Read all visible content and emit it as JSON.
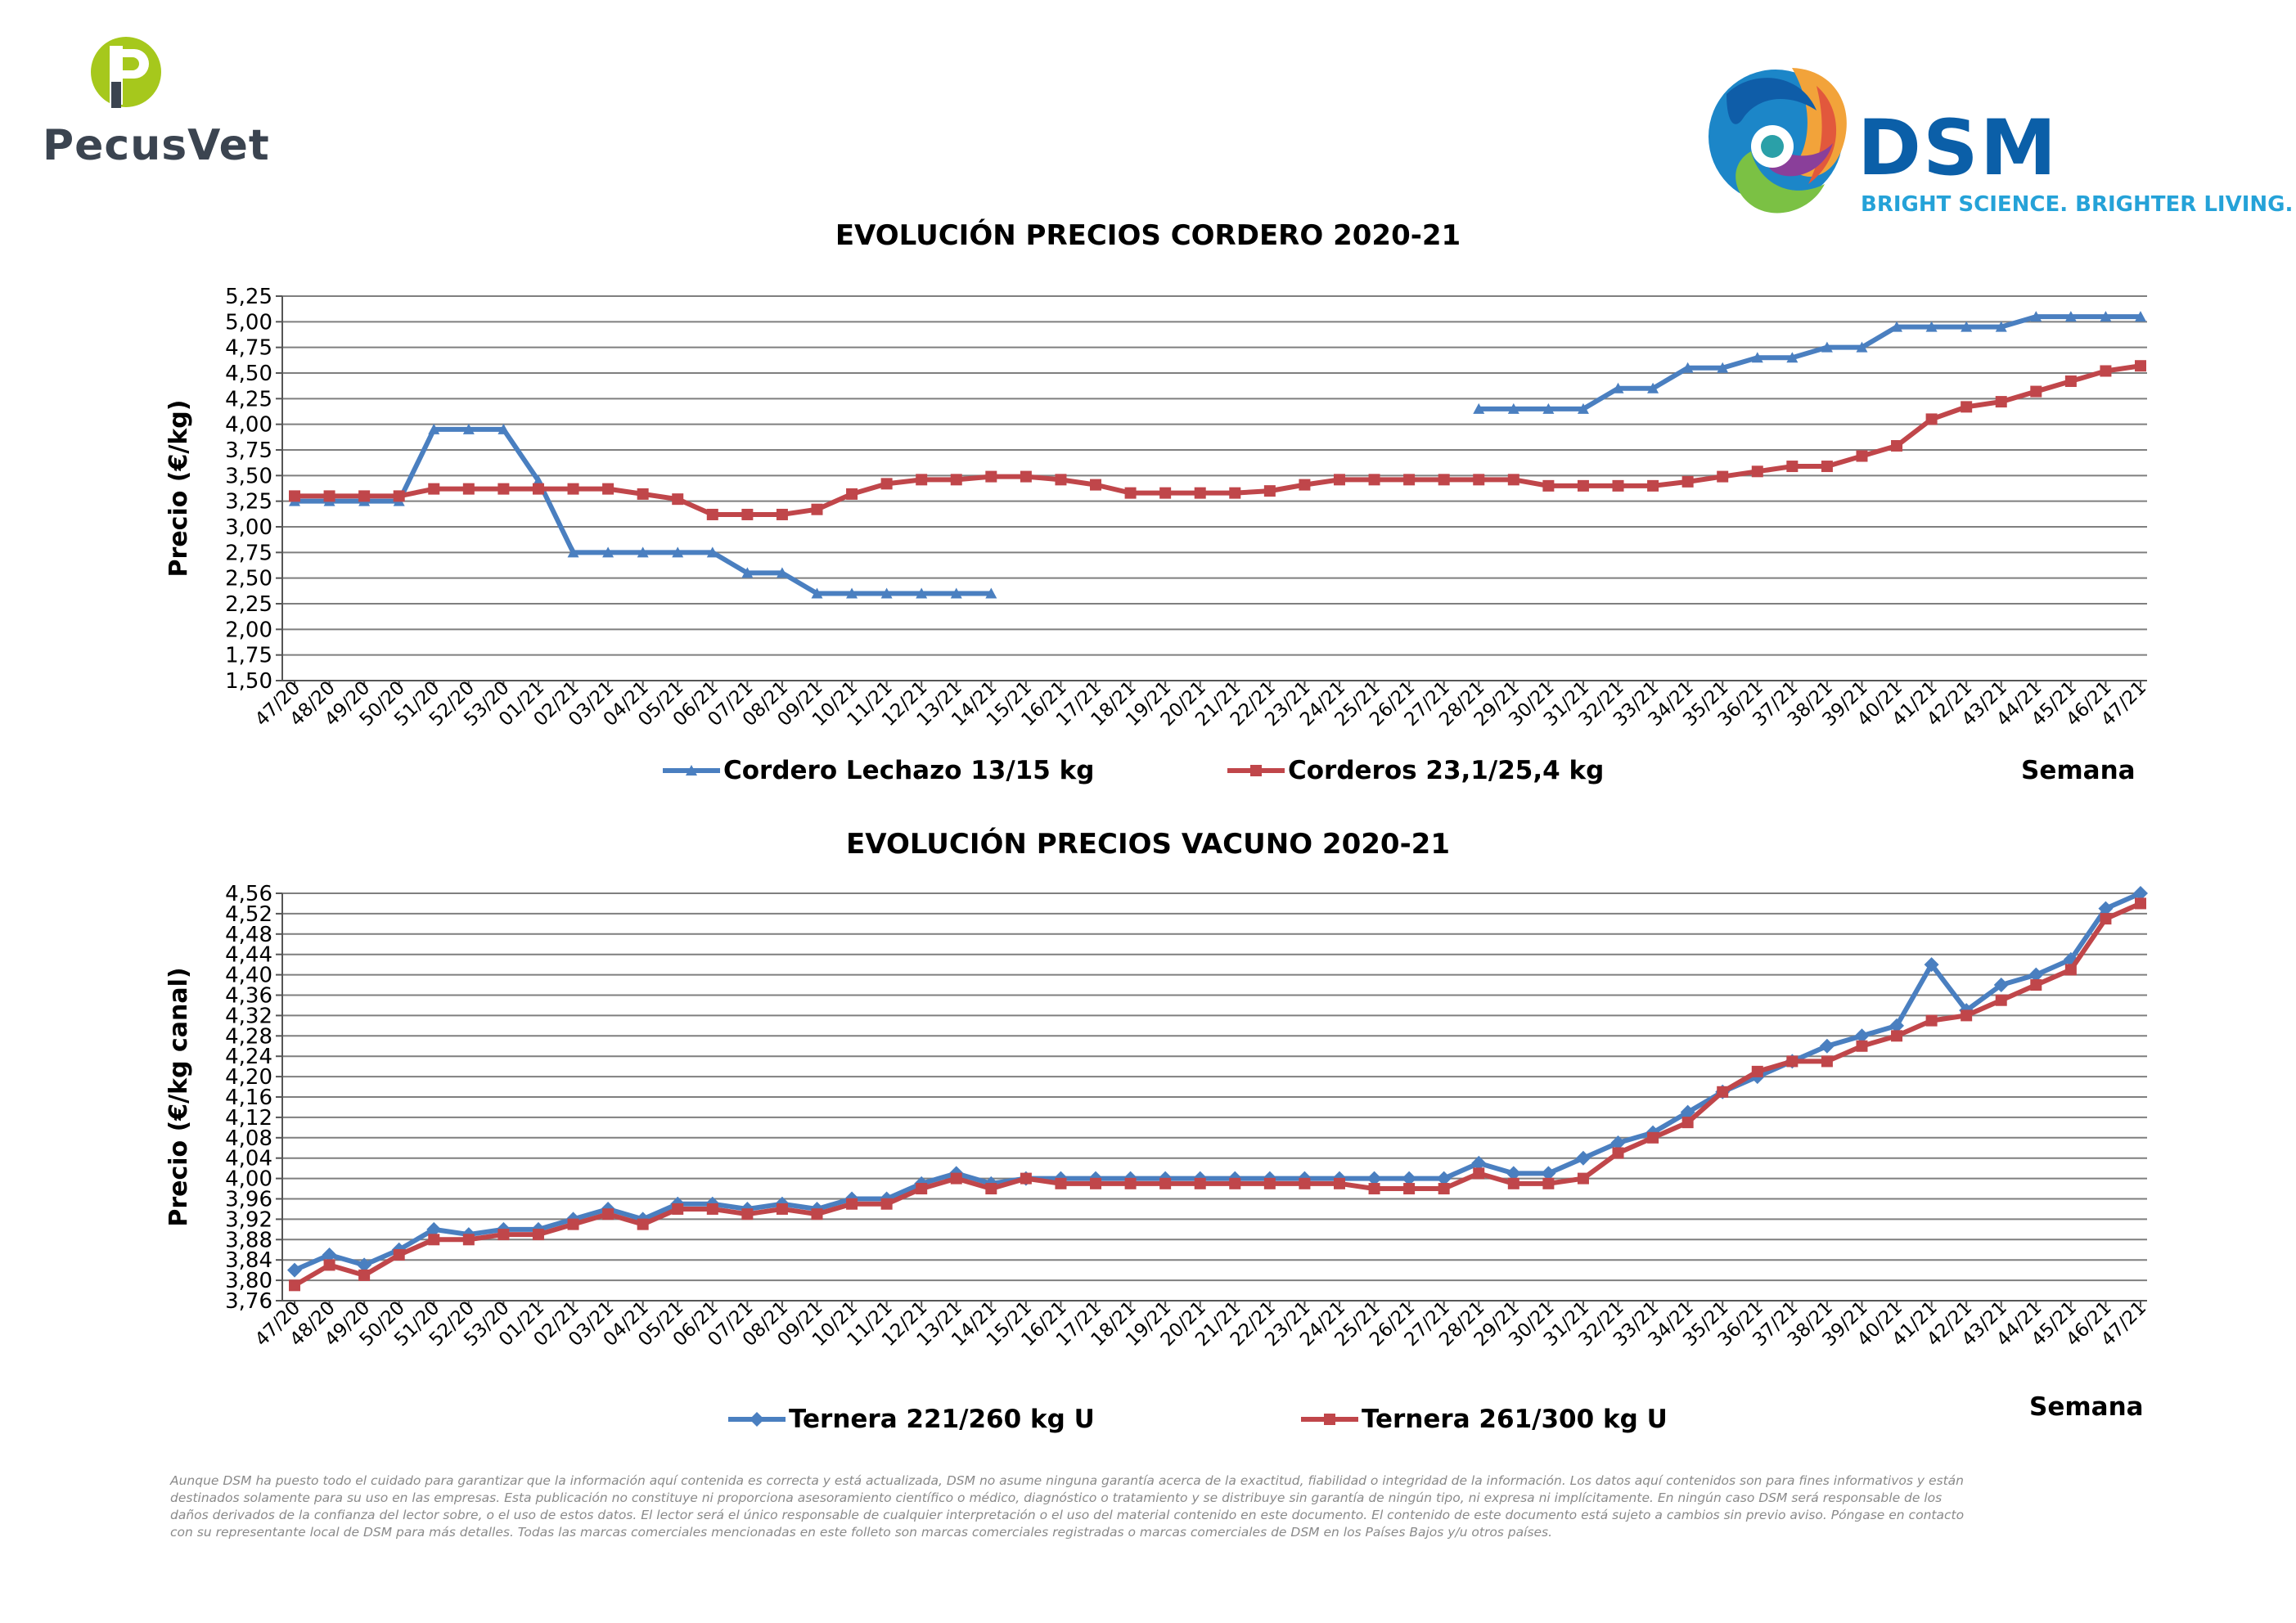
{
  "logos": {
    "pecusvet": {
      "name": "PecusVet",
      "mark": "P",
      "colors": [
        "#a6c81c",
        "#3b4450"
      ]
    },
    "dsm": {
      "name": "DSM",
      "tagline": "BRIGHT SCIENCE. BRIGHTER LIVING.",
      "colors": [
        "#0b5fa8",
        "#25a2d8"
      ]
    }
  },
  "colors": {
    "blue": "#4a7fc0",
    "red": "#c0464a",
    "grid": "#7f7f7f"
  },
  "chart_data": [
    {
      "type": "line",
      "title": "EVOLUCIÓN PRECIOS CORDERO 2020-21",
      "ylabel": "Precio (€/kg)",
      "xlabel": "Semana",
      "ylim": [
        1.5,
        5.25
      ],
      "yticks": [
        "1,50",
        "1,75",
        "2,00",
        "2,25",
        "2,50",
        "2,75",
        "3,00",
        "3,25",
        "3,50",
        "3,75",
        "4,00",
        "4,25",
        "4,50",
        "4,75",
        "5,00",
        "5,25"
      ],
      "grid": true,
      "legend_position": "bottom",
      "categories": [
        "47/20",
        "48/20",
        "49/20",
        "50/20",
        "51/20",
        "52/20",
        "53/20",
        "01/21",
        "02/21",
        "03/21",
        "04/21",
        "05/21",
        "06/21",
        "07/21",
        "08/21",
        "09/21",
        "10/21",
        "11/21",
        "12/21",
        "13/21",
        "14/21",
        "15/21",
        "16/21",
        "17/21",
        "18/21",
        "19/21",
        "20/21",
        "21/21",
        "22/21",
        "23/21",
        "24/21",
        "25/21",
        "26/21",
        "27/21",
        "28/21",
        "29/21",
        "30/21",
        "31/21",
        "32/21",
        "33/21",
        "34/21",
        "35/21",
        "36/21",
        "37/21",
        "38/21",
        "39/21",
        "40/21",
        "41/21",
        "42/21",
        "43/21",
        "44/21",
        "45/21",
        "46/21",
        "47/21"
      ],
      "series": [
        {
          "name": "Cordero Lechazo 13/15 kg",
          "color": "#4a7fc0",
          "marker": "triangle",
          "values": [
            3.25,
            3.25,
            3.25,
            3.25,
            3.95,
            3.95,
            3.95,
            3.45,
            2.75,
            2.75,
            2.75,
            2.75,
            2.75,
            2.55,
            2.55,
            2.35,
            2.35,
            2.35,
            2.35,
            2.35,
            2.35,
            null,
            null,
            null,
            null,
            null,
            null,
            null,
            null,
            null,
            null,
            null,
            null,
            null,
            4.15,
            4.15,
            4.15,
            4.15,
            4.35,
            4.35,
            4.55,
            4.55,
            4.65,
            4.65,
            4.75,
            4.75,
            4.95,
            4.95,
            4.95,
            4.95,
            5.05,
            5.05,
            5.05,
            5.05
          ]
        },
        {
          "name": "Corderos 23,1/25,4 kg",
          "color": "#c0464a",
          "marker": "square",
          "values": [
            3.3,
            3.3,
            3.3,
            3.3,
            3.37,
            3.37,
            3.37,
            3.37,
            3.37,
            3.37,
            3.32,
            3.27,
            3.12,
            3.12,
            3.12,
            3.17,
            3.32,
            3.42,
            3.46,
            3.46,
            3.49,
            3.49,
            3.46,
            3.41,
            3.33,
            3.33,
            3.33,
            3.33,
            3.35,
            3.41,
            3.46,
            3.46,
            3.46,
            3.46,
            3.46,
            3.46,
            3.4,
            3.4,
            3.4,
            3.4,
            3.44,
            3.49,
            3.54,
            3.59,
            3.59,
            3.69,
            3.79,
            4.05,
            4.17,
            4.22,
            4.32,
            4.42,
            4.52,
            4.57
          ]
        }
      ]
    },
    {
      "type": "line",
      "title": "EVOLUCIÓN PRECIOS VACUNO 2020-21",
      "ylabel": "Precio (€/kg canal)",
      "xlabel": "Semana",
      "ylim": [
        3.76,
        4.56
      ],
      "yticks": [
        "3,76",
        "3,80",
        "3,84",
        "3,88",
        "3,92",
        "3,96",
        "4,00",
        "4,04",
        "4,08",
        "4,12",
        "4,16",
        "4,20",
        "4,24",
        "4,28",
        "4,32",
        "4,36",
        "4,40",
        "4,44",
        "4,48",
        "4,52",
        "4,56"
      ],
      "grid": true,
      "legend_position": "bottom",
      "categories": [
        "47/20",
        "48/20",
        "49/20",
        "50/20",
        "51/20",
        "52/20",
        "53/20",
        "01/21",
        "02/21",
        "03/21",
        "04/21",
        "05/21",
        "06/21",
        "07/21",
        "08/21",
        "09/21",
        "10/21",
        "11/21",
        "12/21",
        "13/21",
        "14/21",
        "15/21",
        "16/21",
        "17/21",
        "18/21",
        "19/21",
        "20/21",
        "21/21",
        "22/21",
        "23/21",
        "24/21",
        "25/21",
        "26/21",
        "27/21",
        "28/21",
        "29/21",
        "30/21",
        "31/21",
        "32/21",
        "33/21",
        "34/21",
        "35/21",
        "36/21",
        "37/21",
        "38/21",
        "39/21",
        "40/21",
        "41/21",
        "42/21",
        "43/21",
        "44/21",
        "45/21",
        "46/21",
        "47/21"
      ],
      "series": [
        {
          "name": "Ternera 221/260 kg U",
          "color": "#4a7fc0",
          "marker": "diamond",
          "values": [
            3.82,
            3.85,
            3.83,
            3.86,
            3.9,
            3.89,
            3.9,
            3.9,
            3.92,
            3.94,
            3.92,
            3.95,
            3.95,
            3.94,
            3.95,
            3.94,
            3.96,
            3.96,
            3.99,
            4.01,
            3.99,
            4.0,
            4.0,
            4.0,
            4.0,
            4.0,
            4.0,
            4.0,
            4.0,
            4.0,
            4.0,
            4.0,
            4.0,
            4.0,
            4.03,
            4.01,
            4.01,
            4.04,
            4.07,
            4.09,
            4.13,
            4.17,
            4.2,
            4.23,
            4.26,
            4.28,
            4.3,
            4.42,
            4.33,
            4.38,
            4.4,
            4.43,
            4.53,
            4.56
          ]
        },
        {
          "name": "Ternera 261/300 kg U",
          "color": "#c0464a",
          "marker": "square",
          "values": [
            3.79,
            3.83,
            3.81,
            3.85,
            3.88,
            3.88,
            3.89,
            3.89,
            3.91,
            3.93,
            3.91,
            3.94,
            3.94,
            3.93,
            3.94,
            3.93,
            3.95,
            3.95,
            3.98,
            4.0,
            3.98,
            4.0,
            3.99,
            3.99,
            3.99,
            3.99,
            3.99,
            3.99,
            3.99,
            3.99,
            3.99,
            3.98,
            3.98,
            3.98,
            4.01,
            3.99,
            3.99,
            4.0,
            4.05,
            4.08,
            4.11,
            4.17,
            4.21,
            4.23,
            4.23,
            4.26,
            4.28,
            4.31,
            4.32,
            4.35,
            4.38,
            4.41,
            4.51,
            4.54
          ]
        }
      ]
    }
  ],
  "disclaimer": [
    "Aunque DSM ha puesto todo el cuidado para garantizar que la información aquí contenida es correcta y está actualizada, DSM no asume ninguna garantía acerca de la exactitud, fiabilidad o integridad de la información. Los datos aquí contenidos son para fines informativos y están",
    "destinados solamente para su uso en las empresas. Esta publicación no constituye ni proporciona asesoramiento científico o médico, diagnóstico o tratamiento y se distribuye sin garantía de ningún tipo, ni expresa ni implícitamente. En ningún caso DSM será responsable de los",
    "daños derivados de la confianza del lector sobre, o el uso de estos datos. El lector será el único responsable de cualquier interpretación o el uso del material contenido en este documento. El contenido de este documento está sujeto a cambios sin previo aviso. Póngase en contacto",
    "con su representante local de DSM para más detalles. Todas las marcas comerciales mencionadas en este folleto son marcas comerciales registradas o marcas comerciales de DSM en los Países Bajos y/u otros países."
  ]
}
